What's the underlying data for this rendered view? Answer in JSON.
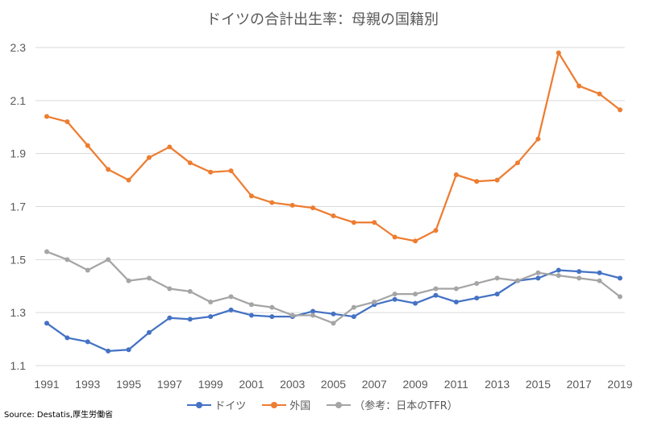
{
  "chart_data": {
    "type": "line",
    "title": "ドイツの合計出生率：母親の国籍別",
    "xlabel": "",
    "ylabel": "",
    "x": [
      1991,
      1992,
      1993,
      1994,
      1995,
      1996,
      1997,
      1998,
      1999,
      2000,
      2001,
      2002,
      2003,
      2004,
      2005,
      2006,
      2007,
      2008,
      2009,
      2010,
      2011,
      2012,
      2013,
      2014,
      2015,
      2016,
      2017,
      2018,
      2019
    ],
    "x_tick_labels": [
      "1991",
      "1993",
      "1995",
      "1997",
      "1999",
      "2001",
      "2003",
      "2005",
      "2007",
      "2009",
      "2011",
      "2013",
      "2015",
      "2017",
      "2019"
    ],
    "y_tick_labels": [
      "1.1",
      "1.3",
      "1.5",
      "1.7",
      "1.9",
      "2.1",
      "2.3"
    ],
    "ylim": [
      1.1,
      2.3
    ],
    "grid": true,
    "legend_position": "bottom",
    "series": [
      {
        "name": "ドイツ",
        "color": "#4472C4",
        "values": [
          1.26,
          1.205,
          1.19,
          1.155,
          1.16,
          1.225,
          1.28,
          1.275,
          1.285,
          1.31,
          1.29,
          1.285,
          1.285,
          1.305,
          1.295,
          1.285,
          1.33,
          1.35,
          1.335,
          1.365,
          1.34,
          1.355,
          1.37,
          1.42,
          1.43,
          1.46,
          1.455,
          1.45,
          1.43
        ]
      },
      {
        "name": "外国",
        "color": "#ED7D31",
        "values": [
          2.04,
          2.02,
          1.93,
          1.84,
          1.8,
          1.885,
          1.925,
          1.865,
          1.83,
          1.835,
          1.74,
          1.715,
          1.705,
          1.695,
          1.665,
          1.64,
          1.64,
          1.585,
          1.57,
          1.61,
          1.82,
          1.795,
          1.8,
          1.865,
          1.955,
          2.28,
          2.155,
          2.125,
          2.065
        ]
      },
      {
        "name": "（参考：日本のTFR）",
        "color": "#A5A5A5",
        "values": [
          1.53,
          1.5,
          1.46,
          1.5,
          1.42,
          1.43,
          1.39,
          1.38,
          1.34,
          1.36,
          1.33,
          1.32,
          1.29,
          1.29,
          1.26,
          1.32,
          1.34,
          1.37,
          1.37,
          1.39,
          1.39,
          1.41,
          1.43,
          1.42,
          1.45,
          1.44,
          1.43,
          1.42,
          1.36
        ]
      }
    ]
  },
  "source": "Source: Destatis,厚生労働省"
}
